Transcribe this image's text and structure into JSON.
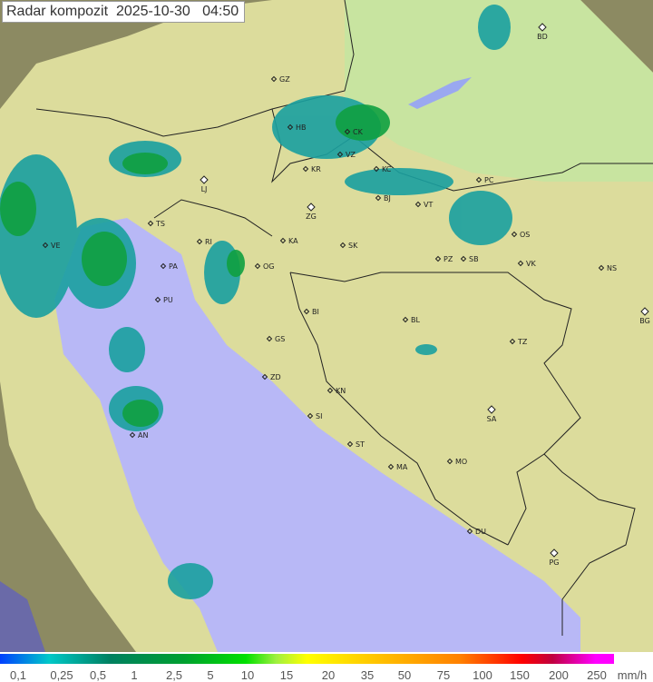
{
  "title": "Radar kompozit  2025-10-30   04:50",
  "colors": {
    "land": "#dcdc9c",
    "sea": "#b8b8f6",
    "outside": "#8c8a62",
    "rain_light": "#1aa0a0",
    "rain_mid": "#10a040",
    "rain_heavy": "#40d040"
  },
  "legend": {
    "ticks": [
      "0,1",
      "0,25",
      "0,5",
      "1",
      "2,5",
      "5",
      "10",
      "15",
      "20",
      "35",
      "50",
      "75",
      "100",
      "150",
      "200",
      "250"
    ],
    "unit": "mm/h"
  },
  "cities": [
    {
      "code": "BD",
      "capital": true
    },
    {
      "code": "GZ"
    },
    {
      "code": "HB"
    },
    {
      "code": "CK"
    },
    {
      "code": "VZ"
    },
    {
      "code": "KR"
    },
    {
      "code": "KC"
    },
    {
      "code": "LJ",
      "capital": true
    },
    {
      "code": "PC"
    },
    {
      "code": "ZG",
      "capital": true
    },
    {
      "code": "BJ"
    },
    {
      "code": "VT"
    },
    {
      "code": "TS"
    },
    {
      "code": "VE"
    },
    {
      "code": "KA"
    },
    {
      "code": "SK"
    },
    {
      "code": "OS"
    },
    {
      "code": "RI"
    },
    {
      "code": "PA"
    },
    {
      "code": "PZ"
    },
    {
      "code": "SB"
    },
    {
      "code": "VK"
    },
    {
      "code": "NS"
    },
    {
      "code": "OG"
    },
    {
      "code": "PU"
    },
    {
      "code": "BI"
    },
    {
      "code": "BL"
    },
    {
      "code": "BG",
      "capital": true
    },
    {
      "code": "GS"
    },
    {
      "code": "TZ"
    },
    {
      "code": "ZD"
    },
    {
      "code": "KN"
    },
    {
      "code": "SA",
      "capital": true
    },
    {
      "code": "SI"
    },
    {
      "code": "ST"
    },
    {
      "code": "AN"
    },
    {
      "code": "MA"
    },
    {
      "code": "MO"
    },
    {
      "code": "DU"
    },
    {
      "code": "PG",
      "capital": true
    }
  ]
}
